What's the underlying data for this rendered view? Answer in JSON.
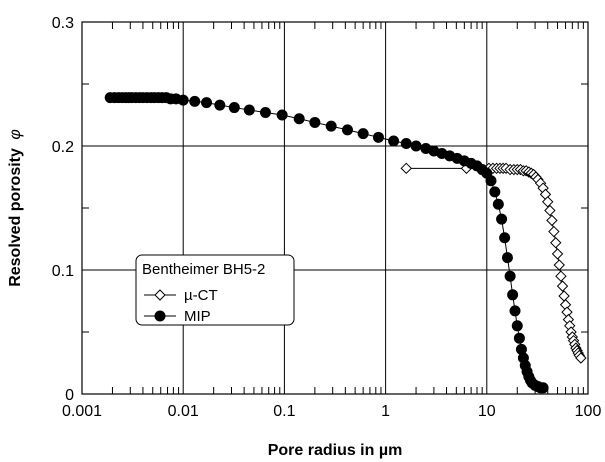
{
  "chart_data": {
    "type": "scatter",
    "xscale": "log",
    "xlim": [
      0.001,
      100
    ],
    "ylim": [
      0,
      0.3
    ],
    "xticks": [
      "0.001",
      "0.01",
      "0.1",
      "1",
      "10",
      "100"
    ],
    "yticks": [
      "0",
      "0.1",
      "0.2",
      "0.3"
    ],
    "xlabel": "Pore radius in µm",
    "ylabel": "Resolved porosity",
    "ylabel_symbol": "φ",
    "grid": true,
    "legend": {
      "title": "Bentheimer BH5-2",
      "position": "lower-left"
    },
    "series": [
      {
        "name": "µ-CT",
        "marker": "open-diamond",
        "line": true,
        "x": [
          1.6,
          6.3,
          10.5,
          11.5,
          12.5,
          13.5,
          14.5,
          15.5,
          17,
          18.5,
          20,
          21.5,
          23,
          24.5,
          26,
          27.5,
          29,
          30.5,
          32,
          34,
          36,
          38,
          40,
          42,
          44,
          46,
          48,
          50,
          52,
          54,
          56,
          58,
          60,
          62,
          64,
          66,
          68,
          70,
          72,
          74,
          76,
          78,
          80,
          82,
          85
        ],
        "y": [
          0.182,
          0.182,
          0.182,
          0.182,
          0.182,
          0.182,
          0.182,
          0.182,
          0.181,
          0.181,
          0.181,
          0.181,
          0.18,
          0.18,
          0.179,
          0.178,
          0.177,
          0.175,
          0.173,
          0.17,
          0.166,
          0.161,
          0.155,
          0.148,
          0.14,
          0.131,
          0.122,
          0.113,
          0.104,
          0.095,
          0.087,
          0.079,
          0.072,
          0.066,
          0.06,
          0.055,
          0.05,
          0.046,
          0.043,
          0.04,
          0.037,
          0.035,
          0.033,
          0.031,
          0.029
        ]
      },
      {
        "name": "MIP",
        "marker": "filled-circle",
        "line": true,
        "x": [
          0.0019,
          0.0021,
          0.0023,
          0.0025,
          0.0027,
          0.0029,
          0.0031,
          0.0034,
          0.0037,
          0.004,
          0.0044,
          0.0048,
          0.0052,
          0.0057,
          0.0062,
          0.0068,
          0.0075,
          0.0085,
          0.01,
          0.013,
          0.017,
          0.023,
          0.032,
          0.045,
          0.065,
          0.095,
          0.14,
          0.2,
          0.29,
          0.42,
          0.6,
          0.85,
          1.2,
          1.6,
          2.0,
          2.5,
          3.0,
          3.6,
          4.3,
          5.1,
          6.0,
          7.0,
          8.0,
          9.0,
          10.0,
          11.0,
          12.0,
          13.0,
          14.0,
          15.0,
          16.0,
          17.0,
          18.0,
          19.0,
          20.0,
          21.0,
          22.0,
          23.0,
          24.0,
          25.0,
          26.0,
          27.0,
          28.0,
          30.0,
          32.0,
          34.0,
          36.0
        ],
        "y": [
          0.239,
          0.239,
          0.239,
          0.239,
          0.239,
          0.239,
          0.239,
          0.239,
          0.239,
          0.239,
          0.239,
          0.239,
          0.239,
          0.239,
          0.239,
          0.239,
          0.238,
          0.238,
          0.237,
          0.236,
          0.235,
          0.233,
          0.231,
          0.229,
          0.227,
          0.225,
          0.222,
          0.219,
          0.216,
          0.213,
          0.21,
          0.207,
          0.204,
          0.202,
          0.2,
          0.198,
          0.196,
          0.194,
          0.192,
          0.19,
          0.188,
          0.186,
          0.184,
          0.181,
          0.178,
          0.172,
          0.163,
          0.153,
          0.141,
          0.126,
          0.11,
          0.095,
          0.08,
          0.067,
          0.055,
          0.045,
          0.036,
          0.029,
          0.023,
          0.018,
          0.014,
          0.011,
          0.009,
          0.007,
          0.006,
          0.005,
          0.005
        ]
      }
    ]
  }
}
